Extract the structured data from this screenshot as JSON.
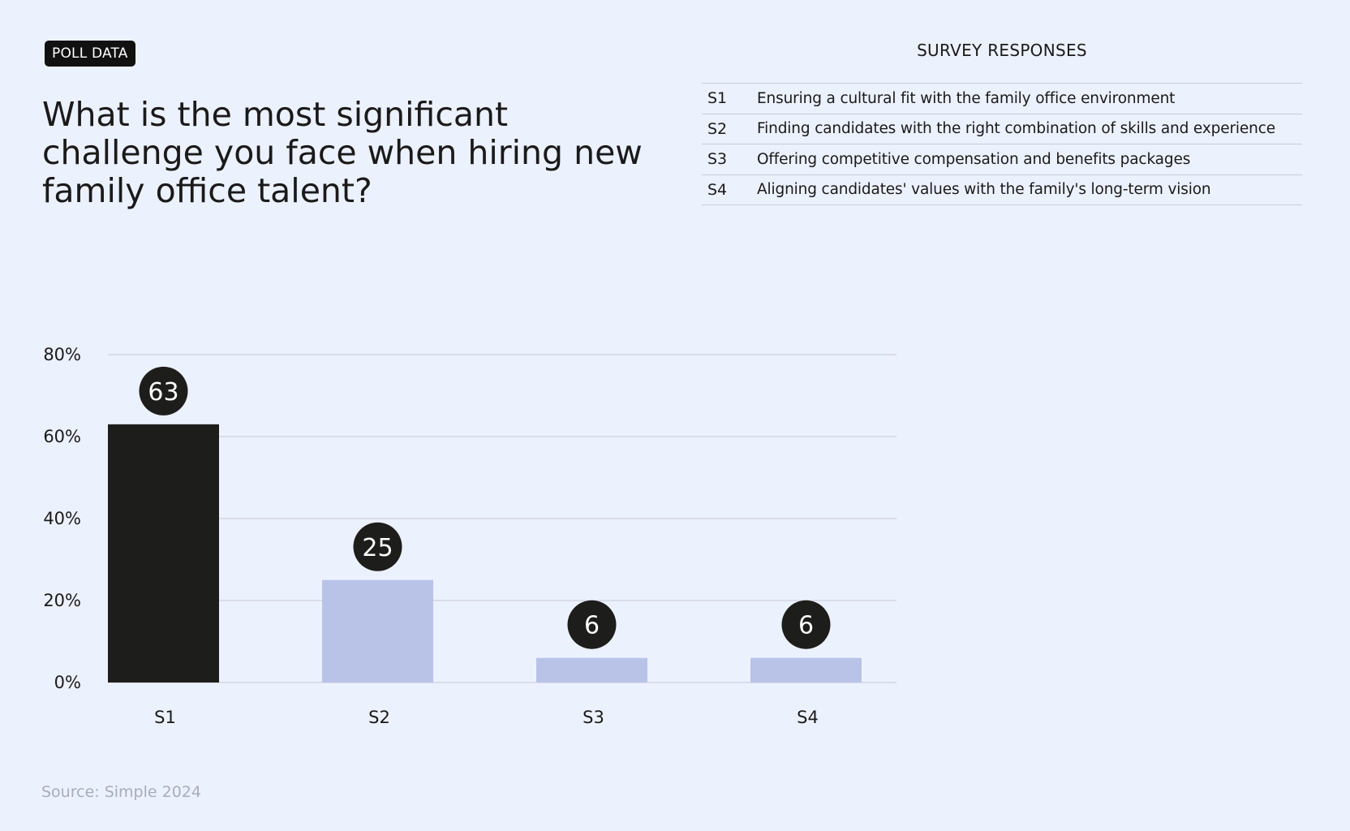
{
  "badge": "POLL DATA",
  "question": "What is the most significant challenge you face when hiring new family office talent?",
  "legend": {
    "title": "SURVEY RESPONSES",
    "items": [
      {
        "code": "S1",
        "text": "Ensuring a cultural fit with the family office environment"
      },
      {
        "code": "S2",
        "text": "Finding candidates with the right combination of skills and experience"
      },
      {
        "code": "S3",
        "text": "Offering competitive compensation and benefits packages"
      },
      {
        "code": "S4",
        "text": "Aligning candidates' values with the family's long-term vision"
      }
    ]
  },
  "source": "Source: Simple 2024",
  "colors": {
    "highlight_bar": "#1d1d1b",
    "other_bar": "#b9c3e8",
    "label_bubble": "#1d1d1b",
    "gridline": "#d3d6df",
    "background": "#ecf1fe"
  },
  "chart_data": {
    "type": "bar",
    "categories": [
      "S1",
      "S2",
      "S3",
      "S4"
    ],
    "values": [
      63,
      25,
      6,
      6
    ],
    "data_labels": [
      "63",
      "25",
      "6",
      "6"
    ],
    "yticks": [
      "0%",
      "20%",
      "40%",
      "60%",
      "80%"
    ],
    "ylim": [
      0,
      80
    ],
    "grid": true,
    "highlighted_category": "S1"
  }
}
